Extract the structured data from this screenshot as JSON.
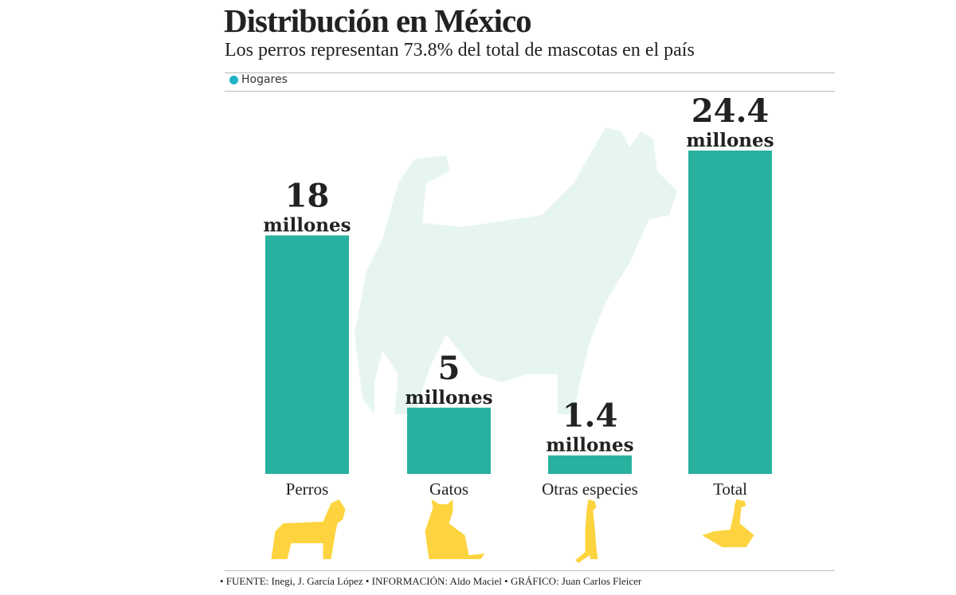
{
  "header": {
    "title": "Distribución en México",
    "subtitle": "Los perros representan 73.8% del total de mascotas en el país"
  },
  "colors": {
    "bar": "#29b19f",
    "legend_dot": "#1fb3c5",
    "icons": "#fdd43f",
    "silhouette": "#e6f5f1",
    "text": "#222222"
  },
  "chart_data": {
    "type": "bar",
    "title": "Distribución en México",
    "subtitle": "Los perros representan 73.8% del total de mascotas en el país",
    "legend": [
      "Hogares"
    ],
    "legend_position": "top-left",
    "categories": [
      "Perros",
      "Gatos",
      "Otras especies",
      "Total"
    ],
    "series": [
      {
        "name": "Hogares",
        "values": [
          18,
          5,
          1.4,
          24.4
        ]
      }
    ],
    "data_labels": [
      "18",
      "5",
      "1.4",
      "24.4"
    ],
    "unit_label": "millones",
    "icons": [
      "schnauzer-dog-icon",
      "cat-icon",
      "meerkat-icon",
      "goose-icon"
    ],
    "ylim": [
      0,
      24.4
    ],
    "grid": false,
    "xlabel": "",
    "ylabel": ""
  },
  "footer": "• FUENTE: Inegi, J. García López • INFORMACIÓN: Aldo Maciel • GRÁFICO:  Juan Carlos Fleicer"
}
